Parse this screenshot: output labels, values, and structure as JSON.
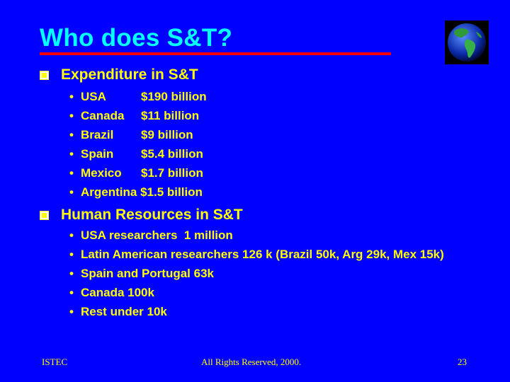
{
  "title": "Who does S&T?",
  "sections": [
    {
      "heading": "Expenditure in S&T",
      "items": [
        {
          "country": "USA",
          "value": "$190 billion"
        },
        {
          "country": "Canada",
          "value": "$11 billion"
        },
        {
          "country": "Brazil",
          "value": "$9 billion"
        },
        {
          "country": "Spain",
          "value": "$5.4 billion"
        },
        {
          "country": "Mexico",
          "value": "$1.7 billion"
        },
        {
          "country": "Argentina",
          "value": "$1.5 billion"
        }
      ]
    },
    {
      "heading": "Human Resources in S&T",
      "items": [
        "USA researchers  1 million",
        "Latin American researchers 126 k (Brazil 50k, Arg 29k, Mex 15k)",
        "Spain and Portugal 63k",
        "Canada 100k",
        "Rest under 10k"
      ]
    }
  ],
  "footer": {
    "left": "ISTEC",
    "center": "All Rights Reserved, 2000.",
    "right": "23"
  },
  "icons": {
    "logo": "globe-icon",
    "section_bullet": "square-bullet-icon",
    "item_bullet": "dot-bullet-icon"
  },
  "colors": {
    "background": "#0000ff",
    "title": "#00ffff",
    "text": "#ffff00",
    "rule": "#ff0000"
  }
}
